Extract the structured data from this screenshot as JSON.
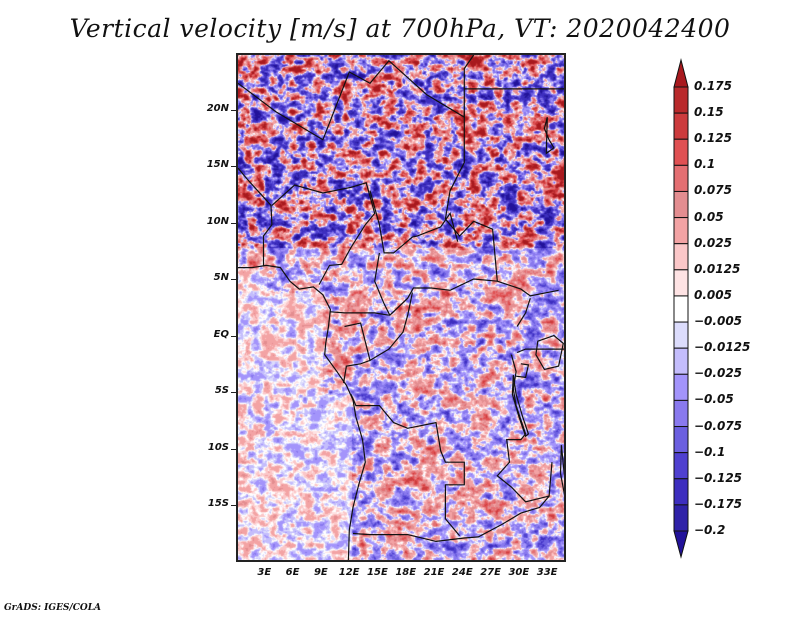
{
  "title": "Vertical velocity [m/s] at 700hPa, VT: 2020042400",
  "footer": "GrADS: IGES/COLA",
  "map": {
    "variable": "Vertical velocity",
    "units": "m/s",
    "level": "700hPa",
    "valid_time": "2020042400",
    "lon_range": [
      0,
      35
    ],
    "lat_range": [
      -20,
      25
    ],
    "lat_ticks": [
      {
        "value": 20,
        "label": "20N"
      },
      {
        "value": 15,
        "label": "15N"
      },
      {
        "value": 10,
        "label": "10N"
      },
      {
        "value": 5,
        "label": "5N"
      },
      {
        "value": 0,
        "label": "EQ"
      },
      {
        "value": -5,
        "label": "5S"
      },
      {
        "value": -10,
        "label": "10S"
      },
      {
        "value": -15,
        "label": "15S"
      }
    ],
    "lon_ticks": [
      {
        "value": 3,
        "label": "3E"
      },
      {
        "value": 6,
        "label": "6E"
      },
      {
        "value": 9,
        "label": "9E"
      },
      {
        "value": 12,
        "label": "12E"
      },
      {
        "value": 15,
        "label": "15E"
      },
      {
        "value": 18,
        "label": "18E"
      },
      {
        "value": 21,
        "label": "21E"
      },
      {
        "value": 24,
        "label": "24E"
      },
      {
        "value": 27,
        "label": "27E"
      },
      {
        "value": 30,
        "label": "30E"
      },
      {
        "value": 33,
        "label": "33E"
      }
    ]
  },
  "colorbar": {
    "levels": [
      "0.175",
      "0.15",
      "0.125",
      "0.1",
      "0.075",
      "0.05",
      "0.025",
      "0.0125",
      "0.005",
      "-0.005",
      "-0.0125",
      "-0.025",
      "-0.05",
      "-0.075",
      "-0.1",
      "-0.125",
      "-0.175",
      "-0.2"
    ],
    "colors": [
      "#a8191e",
      "#b92a2c",
      "#cc3b3d",
      "#e05153",
      "#e46f72",
      "#e38d90",
      "#f3a3a4",
      "#fbc7c8",
      "#fee3e4",
      "#ffffff",
      "#dcdcfc",
      "#c4bdfc",
      "#a394fb",
      "#8979ee",
      "#6b5fe0",
      "#4f40d0",
      "#3d2ebf",
      "#2f22a8",
      "#22129a"
    ],
    "extend": "both"
  }
}
